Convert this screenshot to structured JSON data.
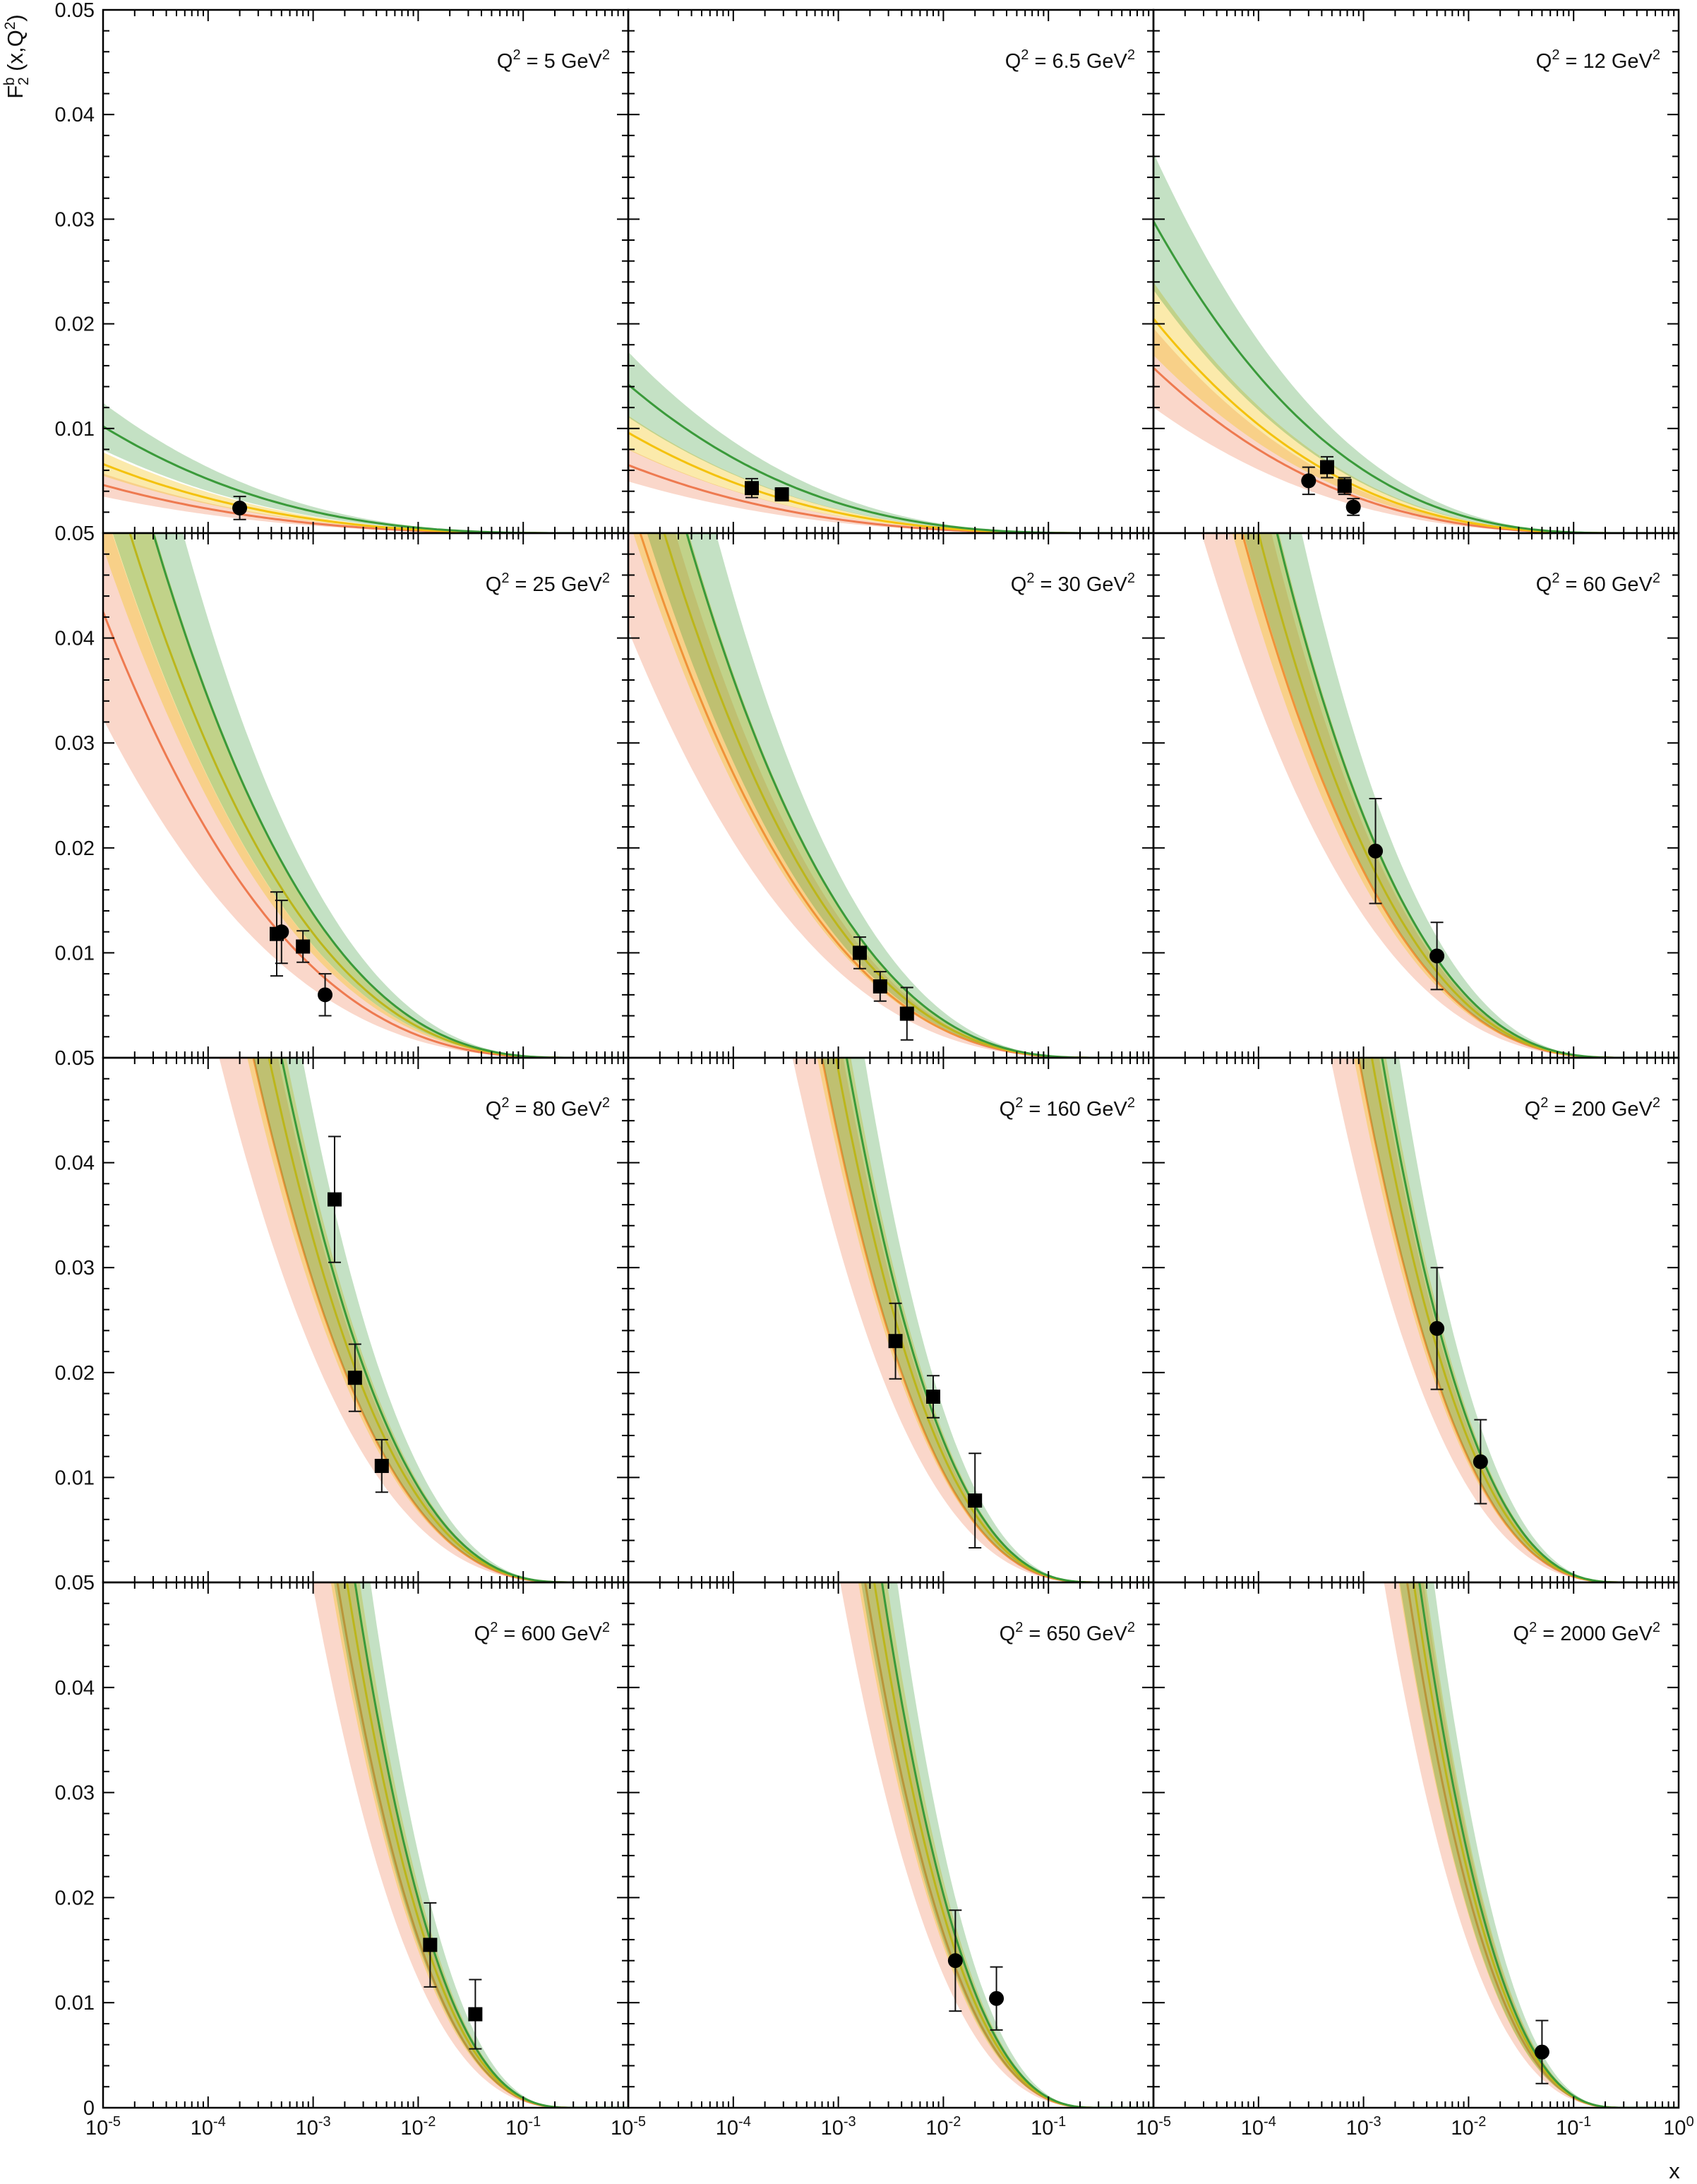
{
  "chart_data": {
    "type": "scatter",
    "layout": "4x3 grid of panels sharing axes",
    "x_scale": "log",
    "xlim": [
      1e-05,
      1
    ],
    "ylim": [
      0,
      0.05
    ],
    "xlabel": "x",
    "ylabel": "F_2^b (x,Q^2)",
    "ylabel_parts": {
      "main": "F",
      "sub": "2",
      "sup": "b",
      "rest": " (x,Q",
      "rest_sup": "2",
      "close": ")"
    },
    "x_tick_labels": [
      {
        "base": "10",
        "exp": "-5",
        "value": 1e-05
      },
      {
        "base": "10",
        "exp": "-4",
        "value": 0.0001
      },
      {
        "base": "10",
        "exp": "-3",
        "value": 0.001
      },
      {
        "base": "10",
        "exp": "-2",
        "value": 0.01
      },
      {
        "base": "10",
        "exp": "-1",
        "value": 0.1
      },
      {
        "base": "10",
        "exp": "0",
        "value": 1
      }
    ],
    "y_tick_labels": [
      "0",
      "0.01",
      "0.02",
      "0.03",
      "0.04",
      "0.05"
    ],
    "y_top_label": "0.05",
    "band_colors": {
      "green": "#3a9a3a",
      "yellow": "#f4c20d",
      "red": "#ee7a50"
    },
    "grid": false,
    "legend": "none",
    "panels": [
      {
        "q_value": "5",
        "label_prefix": "Q",
        "label_sup": "2",
        "label_eq": " = ",
        "unit": " GeV",
        "unit_sup": "2",
        "points": [
          {
            "x": 0.0002,
            "y": 0.0024,
            "err": 0.0011,
            "marker": "circle"
          }
        ],
        "curves": {
          "green": {
            "x0": 1e-05,
            "y0": 0.0102
          },
          "yellow": {
            "x0": 1e-05,
            "y0": 0.0066
          },
          "red": {
            "x0": 1e-05,
            "y0": 0.0046
          }
        }
      },
      {
        "q_value": "6.5",
        "label_prefix": "Q",
        "label_sup": "2",
        "label_eq": " = ",
        "unit": " GeV",
        "unit_sup": "2",
        "points": [
          {
            "x": 0.00015,
            "y": 0.0043,
            "err": 0.0009,
            "marker": "square"
          },
          {
            "x": 0.00029,
            "y": 0.0037,
            "err": 0.0006,
            "marker": "square"
          }
        ],
        "curves": {
          "green": {
            "x0": 1e-05,
            "y0": 0.0142
          },
          "yellow": {
            "x0": 1e-05,
            "y0": 0.0096
          },
          "red": {
            "x0": 1e-05,
            "y0": 0.0065
          }
        }
      },
      {
        "q_value": "12",
        "label_prefix": "Q",
        "label_sup": "2",
        "label_eq": " = ",
        "unit": " GeV",
        "unit_sup": "2",
        "points": [
          {
            "x": 0.0003,
            "y": 0.005,
            "err": 0.0013,
            "marker": "circle"
          },
          {
            "x": 0.00045,
            "y": 0.0063,
            "err": 0.001,
            "marker": "square"
          },
          {
            "x": 0.00066,
            "y": 0.0045,
            "err": 0.0008,
            "marker": "square"
          },
          {
            "x": 0.0008,
            "y": 0.0025,
            "err": 0.0008,
            "marker": "circle"
          }
        ],
        "curves": {
          "green": {
            "x0": 1e-05,
            "y0": 0.0298
          },
          "yellow": {
            "x0": 1e-05,
            "y0": 0.0205
          },
          "red": {
            "x0": 1e-05,
            "y0": 0.0158
          }
        }
      },
      {
        "q_value": "25",
        "label_prefix": "Q",
        "label_sup": "2",
        "label_eq": " = ",
        "unit": " GeV",
        "unit_sup": "2",
        "points": [
          {
            "x": 0.00045,
            "y": 0.0118,
            "err": 0.004,
            "marker": "square"
          },
          {
            "x": 0.0005,
            "y": 0.012,
            "err": 0.003,
            "marker": "circle"
          },
          {
            "x": 0.0008,
            "y": 0.0106,
            "err": 0.0015,
            "marker": "square"
          },
          {
            "x": 0.0013,
            "y": 0.006,
            "err": 0.002,
            "marker": "circle"
          }
        ],
        "curves": {
          "green": {
            "x0": 3e-05,
            "y0": 0.05
          },
          "yellow": {
            "x0": 1.8e-05,
            "y0": 0.05
          },
          "red": {
            "x0": 1e-05,
            "y0": 0.0425
          }
        }
      },
      {
        "q_value": "30",
        "label_prefix": "Q",
        "label_sup": "2",
        "label_eq": " = ",
        "unit": " GeV",
        "unit_sup": "2",
        "points": [
          {
            "x": 0.0016,
            "y": 0.01,
            "err": 0.0015,
            "marker": "square"
          },
          {
            "x": 0.0025,
            "y": 0.0068,
            "err": 0.0014,
            "marker": "square"
          },
          {
            "x": 0.0045,
            "y": 0.0042,
            "err": 0.0025,
            "marker": "square"
          }
        ],
        "curves": {
          "green": {
            "x0": 3.6e-05,
            "y0": 0.05
          },
          "yellow": {
            "x0": 2.2e-05,
            "y0": 0.05
          },
          "red": {
            "x0": 1.3e-05,
            "y0": 0.05
          }
        }
      },
      {
        "q_value": "60",
        "label_prefix": "Q",
        "label_sup": "2",
        "label_eq": " = ",
        "unit": " GeV",
        "unit_sup": "2",
        "points": [
          {
            "x": 0.0013,
            "y": 0.0197,
            "err": 0.005,
            "marker": "circle"
          },
          {
            "x": 0.005,
            "y": 0.0097,
            "err": 0.0032,
            "marker": "circle"
          }
        ],
        "curves": {
          "green": {
            "x0": 0.00015,
            "y0": 0.05
          },
          "yellow": {
            "x0": 0.0001,
            "y0": 0.05
          },
          "red": {
            "x0": 7e-05,
            "y0": 0.05
          }
        }
      },
      {
        "q_value": "80",
        "label_prefix": "Q",
        "label_sup": "2",
        "label_eq": " = ",
        "unit": " GeV",
        "unit_sup": "2",
        "points": [
          {
            "x": 0.0016,
            "y": 0.0365,
            "err": 0.006,
            "marker": "square"
          },
          {
            "x": 0.0025,
            "y": 0.0195,
            "err": 0.0032,
            "marker": "square"
          },
          {
            "x": 0.0045,
            "y": 0.0111,
            "err": 0.0025,
            "marker": "square"
          }
        ],
        "curves": {
          "green": {
            "x0": 0.0005,
            "y0": 0.05
          },
          "yellow": {
            "x0": 0.00038,
            "y0": 0.05
          },
          "red": {
            "x0": 0.00027,
            "y0": 0.05
          }
        }
      },
      {
        "q_value": "160",
        "label_prefix": "Q",
        "label_sup": "2",
        "label_eq": " = ",
        "unit": " GeV",
        "unit_sup": "2",
        "points": [
          {
            "x": 0.0035,
            "y": 0.023,
            "err": 0.0036,
            "marker": "square"
          },
          {
            "x": 0.008,
            "y": 0.0177,
            "err": 0.002,
            "marker": "square"
          },
          {
            "x": 0.02,
            "y": 0.0078,
            "err": 0.0045,
            "marker": "square"
          }
        ],
        "curves": {
          "green": {
            "x0": 0.0012,
            "y0": 0.05
          },
          "yellow": {
            "x0": 0.00095,
            "y0": 0.05
          },
          "red": {
            "x0": 0.0007,
            "y0": 0.05
          }
        }
      },
      {
        "q_value": "200",
        "label_prefix": "Q",
        "label_sup": "2",
        "label_eq": " = ",
        "unit": " GeV",
        "unit_sup": "2",
        "points": [
          {
            "x": 0.005,
            "y": 0.0242,
            "err": 0.0058,
            "marker": "circle"
          },
          {
            "x": 0.013,
            "y": 0.0115,
            "err": 0.004,
            "marker": "circle"
          }
        ],
        "curves": {
          "green": {
            "x0": 0.0015,
            "y0": 0.05
          },
          "yellow": {
            "x0": 0.0012,
            "y0": 0.05
          },
          "red": {
            "x0": 0.0009,
            "y0": 0.05
          }
        }
      },
      {
        "q_value": "600",
        "label_prefix": "Q",
        "label_sup": "2",
        "label_eq": " = ",
        "unit": " GeV",
        "unit_sup": "2",
        "points": [
          {
            "x": 0.013,
            "y": 0.0155,
            "err": 0.004,
            "marker": "square"
          },
          {
            "x": 0.035,
            "y": 0.0089,
            "err": 0.0033,
            "marker": "square"
          }
        ],
        "curves": {
          "green": {
            "x0": 0.0025,
            "y0": 0.05
          },
          "yellow": {
            "x0": 0.0021,
            "y0": 0.05
          },
          "red": {
            "x0": 0.0017,
            "y0": 0.05
          }
        }
      },
      {
        "q_value": "650",
        "label_prefix": "Q",
        "label_sup": "2",
        "label_eq": " = ",
        "unit": " GeV",
        "unit_sup": "2",
        "points": [
          {
            "x": 0.013,
            "y": 0.014,
            "err": 0.0048,
            "marker": "circle"
          },
          {
            "x": 0.032,
            "y": 0.0104,
            "err": 0.003,
            "marker": "circle"
          }
        ],
        "curves": {
          "green": {
            "x0": 0.0026,
            "y0": 0.05
          },
          "yellow": {
            "x0": 0.0022,
            "y0": 0.05
          },
          "red": {
            "x0": 0.0018,
            "y0": 0.05
          }
        }
      },
      {
        "q_value": "2000",
        "label_prefix": "Q",
        "label_sup": "2",
        "label_eq": " = ",
        "unit": " GeV",
        "unit_sup": "2",
        "points": [
          {
            "x": 0.05,
            "y": 0.0053,
            "err": 0.003,
            "marker": "circle"
          }
        ],
        "curves": {
          "green": {
            "x0": 0.0034,
            "y0": 0.05
          },
          "yellow": {
            "x0": 0.003,
            "y0": 0.05
          },
          "red": {
            "x0": 0.0026,
            "y0": 0.05
          }
        }
      }
    ]
  }
}
